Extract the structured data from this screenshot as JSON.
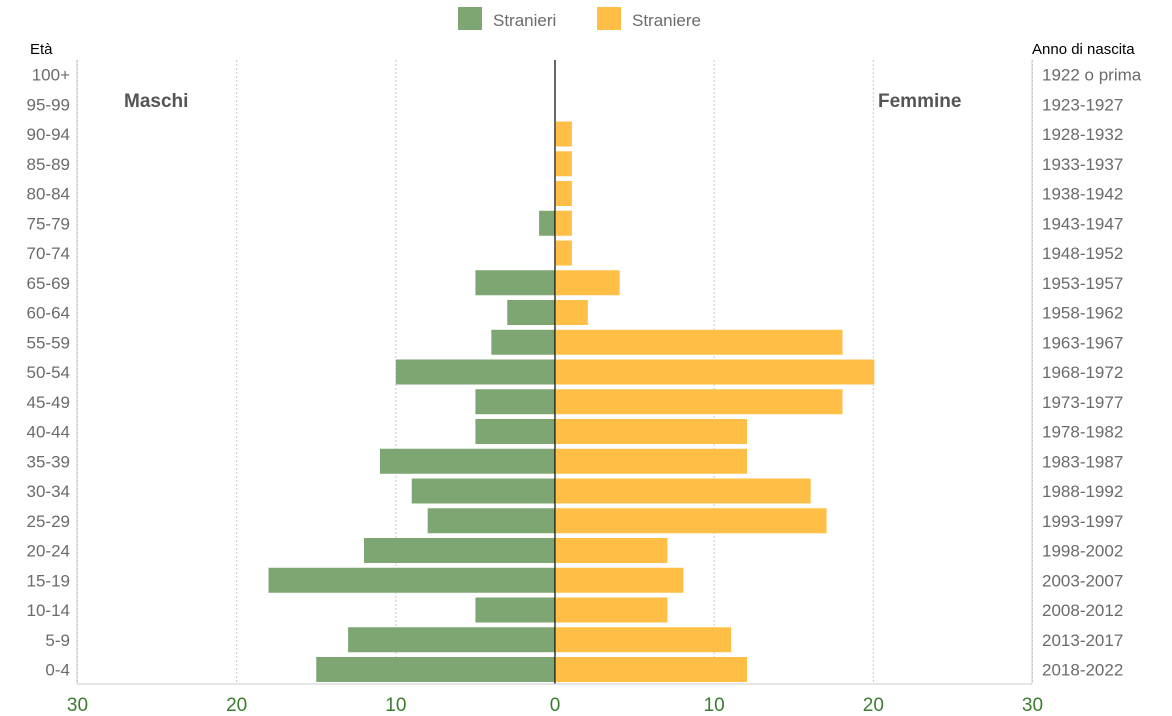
{
  "chart_data": {
    "type": "bar",
    "orientation": "horizontal",
    "subtype": "population-pyramid",
    "legend": [
      {
        "name": "Stranieri",
        "color": "#7da672"
      },
      {
        "name": "Straniere",
        "color": "#ffbf47"
      }
    ],
    "left_axis_title": "Età",
    "right_axis_title": "Anno di nascita",
    "left_side_label": "Maschi",
    "right_side_label": "Femmine",
    "categories": [
      "100+",
      "95-99",
      "90-94",
      "85-89",
      "80-84",
      "75-79",
      "70-74",
      "65-69",
      "60-64",
      "55-59",
      "50-54",
      "45-49",
      "40-44",
      "35-39",
      "30-34",
      "25-29",
      "20-24",
      "15-19",
      "10-14",
      "5-9",
      "0-4"
    ],
    "birth_years": [
      "1922 o prima",
      "1923-1927",
      "1928-1932",
      "1933-1937",
      "1938-1942",
      "1943-1947",
      "1948-1952",
      "1953-1957",
      "1958-1962",
      "1963-1967",
      "1968-1972",
      "1973-1977",
      "1978-1982",
      "1983-1987",
      "1988-1992",
      "1993-1997",
      "1998-2002",
      "2003-2007",
      "2008-2012",
      "2013-2017",
      "2018-2022"
    ],
    "series": [
      {
        "name": "Stranieri",
        "values": [
          0,
          0,
          0,
          0,
          0,
          1,
          0,
          5,
          3,
          4,
          10,
          5,
          5,
          11,
          9,
          8,
          12,
          18,
          5,
          13,
          15
        ]
      },
      {
        "name": "Straniere",
        "values": [
          0,
          0,
          1,
          1,
          1,
          1,
          1,
          4,
          2,
          18,
          20,
          18,
          12,
          12,
          16,
          17,
          7,
          8,
          7,
          11,
          12
        ]
      }
    ],
    "x_ticks": [
      "30",
      "20",
      "10",
      "0",
      "10",
      "20",
      "30"
    ],
    "xlim": [
      -30,
      30
    ],
    "grid": true
  }
}
